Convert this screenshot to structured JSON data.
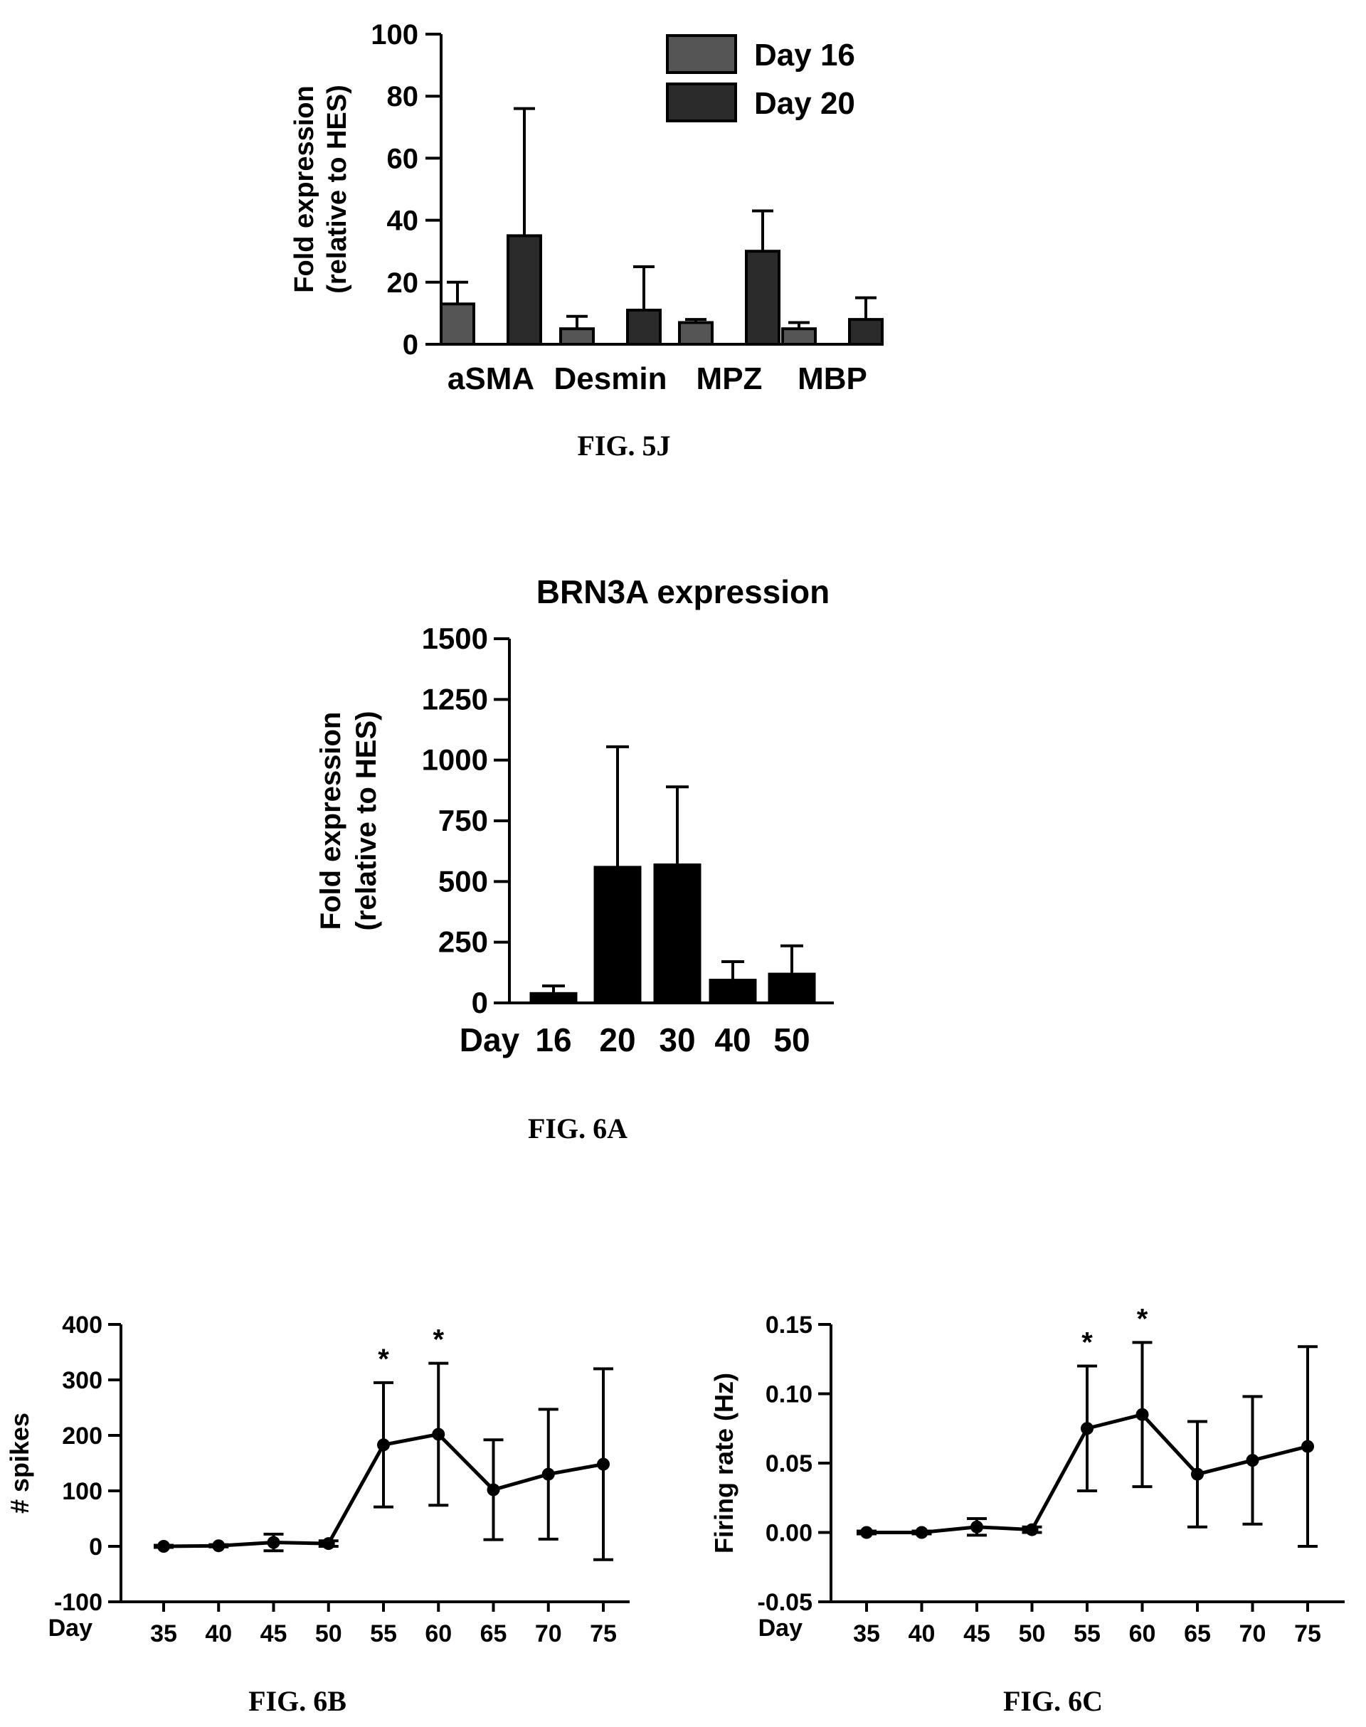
{
  "colors": {
    "ink": "#000000",
    "day16_fill": "#555555",
    "day20_fill": "#2b2b2b",
    "bar_fill": "#000000"
  },
  "chart_data": [
    {
      "id": "fig5j",
      "type": "bar",
      "title": "",
      "ylabel_line1": "Fold expression",
      "ylabel_line2": "(relative to HES)",
      "ylim": [
        0,
        100
      ],
      "yticks": [
        "0",
        "20",
        "40",
        "60",
        "80",
        "100"
      ],
      "categories": [
        "aSMA",
        "Desmin",
        "MPZ",
        "MBP"
      ],
      "series": [
        {
          "name": "Day 16",
          "values": [
            13,
            5,
            7,
            5
          ],
          "errors": [
            7,
            4,
            1,
            2
          ]
        },
        {
          "name": "Day 20",
          "values": [
            35,
            11,
            30,
            8
          ],
          "errors": [
            41,
            14,
            13,
            7
          ]
        }
      ],
      "legend_position": "top-right",
      "caption": "FIG. 5J"
    },
    {
      "id": "fig6a",
      "type": "bar",
      "title": "BRN3A expression",
      "ylabel_line1": "Fold expression",
      "ylabel_line2": "(relative to HES)",
      "ylim": [
        0,
        1500
      ],
      "yticks": [
        "0",
        "250",
        "500",
        "750",
        "1000",
        "1250",
        "1500"
      ],
      "xprefix": "Day",
      "categories": [
        "16",
        "20",
        "30",
        "40",
        "50"
      ],
      "values": [
        40,
        560,
        570,
        95,
        120
      ],
      "errors": [
        30,
        495,
        320,
        75,
        115
      ],
      "caption": "FIG. 6A"
    },
    {
      "id": "fig6b",
      "type": "line",
      "ylabel": "# spikes",
      "ylim": [
        -100,
        400
      ],
      "yticks": [
        "-100",
        "0",
        "100",
        "200",
        "300",
        "400"
      ],
      "xprefix": "Day",
      "x": [
        35,
        40,
        45,
        50,
        55,
        60,
        65,
        70,
        75
      ],
      "xticks": [
        "35",
        "40",
        "45",
        "50",
        "55",
        "60",
        "65",
        "70",
        "75"
      ],
      "values": [
        0,
        1,
        7,
        5,
        183,
        202,
        102,
        130,
        148
      ],
      "errors": [
        2,
        2,
        15,
        5,
        112,
        128,
        90,
        117,
        172
      ],
      "significance": [
        "",
        "",
        "",
        "",
        "*",
        "*",
        "",
        "",
        ""
      ],
      "caption": "FIG. 6B"
    },
    {
      "id": "fig6c",
      "type": "line",
      "ylabel": "Firing rate (Hz)",
      "ylim": [
        -0.05,
        0.15
      ],
      "yticks": [
        "-0.05",
        "0.00",
        "0.05",
        "0.10",
        "0.15"
      ],
      "xprefix": "Day",
      "x": [
        35,
        40,
        45,
        50,
        55,
        60,
        65,
        70,
        75
      ],
      "xticks": [
        "35",
        "40",
        "45",
        "50",
        "55",
        "60",
        "65",
        "70",
        "75"
      ],
      "values": [
        0.0,
        0.0,
        0.004,
        0.002,
        0.075,
        0.085,
        0.042,
        0.052,
        0.062
      ],
      "errors": [
        0.001,
        0.001,
        0.006,
        0.002,
        0.045,
        0.052,
        0.038,
        0.046,
        0.072
      ],
      "significance": [
        "",
        "",
        "",
        "",
        "*",
        "*",
        "",
        "",
        ""
      ],
      "caption": "FIG. 6C"
    }
  ]
}
